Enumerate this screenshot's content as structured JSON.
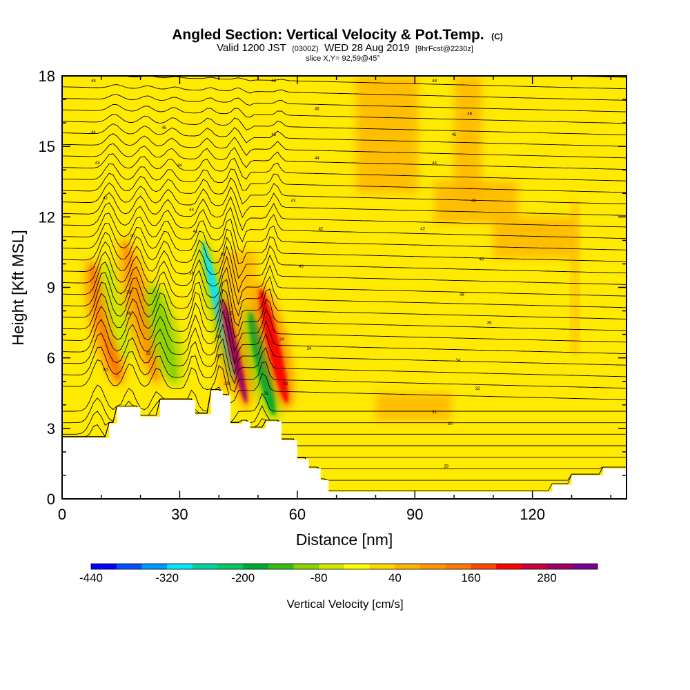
{
  "title": {
    "main": "Angled Section: Vertical Velocity & Pot.Temp.",
    "unit": "(C)",
    "valid_pre": "Valid 1200 JST",
    "valid_z": "(0300Z)",
    "valid_post": "WED 28 Aug 2019",
    "forecast": "[9hrFcst@2230z]",
    "slice": "slice X,Y= 92,59@45°"
  },
  "chart_data": {
    "type": "heatmap",
    "xlabel": "Distance [nm]",
    "ylabel": "Height [Kft MSL]",
    "xlim": [
      0,
      144
    ],
    "ylim": [
      0,
      18
    ],
    "x_ticks": [
      0,
      30,
      60,
      90,
      120
    ],
    "x_tick_labels": [
      "0",
      "30",
      "60",
      "90",
      "120"
    ],
    "y_ticks": [
      0,
      3,
      6,
      9,
      12,
      15,
      18
    ],
    "y_tick_labels": [
      "0",
      "3",
      "6",
      "9",
      "12",
      "15",
      "18"
    ],
    "colorbar": {
      "label": "Vertical Velocity [cm/s]",
      "min": -440,
      "max": 360,
      "step": 40,
      "tick_values": [
        -440,
        -320,
        -200,
        -80,
        40,
        160,
        280
      ],
      "tick_labels": [
        "-440",
        "-320",
        "-200",
        "-80",
        "40",
        "160",
        "280"
      ],
      "colors": [
        "#0000ff",
        "#0050ff",
        "#0096ff",
        "#00e6ff",
        "#00d2a0",
        "#00c864",
        "#00aa32",
        "#32be14",
        "#8cd200",
        "#d2e600",
        "#ffff00",
        "#ffd700",
        "#ffb400",
        "#ff9600",
        "#ff7800",
        "#ff4600",
        "#ff0000",
        "#c8003c",
        "#a00064",
        "#780096"
      ]
    },
    "terrain_height_kft": [
      [
        0,
        2.6
      ],
      [
        5,
        2.6
      ],
      [
        10,
        2.6
      ],
      [
        12,
        3.2
      ],
      [
        14,
        3.9
      ],
      [
        18,
        3.9
      ],
      [
        20,
        3.5
      ],
      [
        22,
        3.5
      ],
      [
        25,
        4.2
      ],
      [
        30,
        4.2
      ],
      [
        34,
        3.6
      ],
      [
        38,
        4.6
      ],
      [
        41,
        4.4
      ],
      [
        43,
        3.2
      ],
      [
        46,
        3.3
      ],
      [
        48,
        3.0
      ],
      [
        52,
        3.3
      ],
      [
        56,
        2.5
      ],
      [
        60,
        1.7
      ],
      [
        63,
        1.3
      ],
      [
        66,
        0.8
      ],
      [
        68,
        0.3
      ],
      [
        75,
        0.3
      ],
      [
        85,
        0.3
      ],
      [
        95,
        0.3
      ],
      [
        105,
        0.3
      ],
      [
        115,
        0.3
      ],
      [
        125,
        0.6
      ],
      [
        130,
        1.0
      ],
      [
        138,
        1.3
      ],
      [
        144,
        1.3
      ]
    ],
    "vertical_velocity_features_cm_s": [
      {
        "x": 11,
        "y_range": [
          5,
          10
        ],
        "value": 120
      },
      {
        "x": 14,
        "y_range": [
          6,
          10
        ],
        "value": -80
      },
      {
        "x": 20,
        "y_range": [
          5,
          11
        ],
        "value": 80
      },
      {
        "x": 26,
        "y_range": [
          5,
          9
        ],
        "value": -120
      },
      {
        "x": 40,
        "y_range": [
          5,
          11
        ],
        "value": -320
      },
      {
        "x": 44,
        "y_range": [
          4,
          8.5
        ],
        "value": 280
      },
      {
        "x": 51,
        "y_range": [
          3.5,
          8
        ],
        "value": -200
      },
      {
        "x": 54,
        "y_range": [
          4,
          9
        ],
        "value": 200
      }
    ],
    "contour_labels": [
      {
        "x": 8,
        "y": 17.8,
        "text": "48"
      },
      {
        "x": 54,
        "y": 17.8,
        "text": "48"
      },
      {
        "x": 95,
        "y": 17.8,
        "text": "48"
      },
      {
        "x": 65,
        "y": 16.6,
        "text": "46"
      },
      {
        "x": 104,
        "y": 16.4,
        "text": "46"
      },
      {
        "x": 26,
        "y": 15.8,
        "text": "45"
      },
      {
        "x": 54,
        "y": 15.5,
        "text": "45"
      },
      {
        "x": 100,
        "y": 15.5,
        "text": "45"
      },
      {
        "x": 8,
        "y": 15.6,
        "text": "44"
      },
      {
        "x": 9,
        "y": 14.3,
        "text": "43"
      },
      {
        "x": 30,
        "y": 14.2,
        "text": "44"
      },
      {
        "x": 65,
        "y": 14.5,
        "text": "44"
      },
      {
        "x": 95,
        "y": 14.3,
        "text": "44"
      },
      {
        "x": 11,
        "y": 12.8,
        "text": "42"
      },
      {
        "x": 33,
        "y": 12.3,
        "text": "43"
      },
      {
        "x": 59,
        "y": 12.7,
        "text": "43"
      },
      {
        "x": 105,
        "y": 12.7,
        "text": "43"
      },
      {
        "x": 66,
        "y": 11.5,
        "text": "42"
      },
      {
        "x": 92,
        "y": 11.5,
        "text": "42"
      },
      {
        "x": 18,
        "y": 11.2,
        "text": "40"
      },
      {
        "x": 34,
        "y": 11.4,
        "text": "41"
      },
      {
        "x": 41,
        "y": 10.4,
        "text": "40"
      },
      {
        "x": 61,
        "y": 9.9,
        "text": "40"
      },
      {
        "x": 107,
        "y": 10.2,
        "text": "40"
      },
      {
        "x": 33,
        "y": 9.6,
        "text": "38"
      },
      {
        "x": 17,
        "y": 8.8,
        "text": "38"
      },
      {
        "x": 102,
        "y": 8.7,
        "text": "38"
      },
      {
        "x": 17,
        "y": 7.9,
        "text": "36"
      },
      {
        "x": 43,
        "y": 7.9,
        "text": "35"
      },
      {
        "x": 109,
        "y": 7.5,
        "text": "36"
      },
      {
        "x": 40,
        "y": 6.9,
        "text": "33"
      },
      {
        "x": 56,
        "y": 6.8,
        "text": "34"
      },
      {
        "x": 22,
        "y": 6.2,
        "text": "32"
      },
      {
        "x": 63,
        "y": 6.4,
        "text": "34"
      },
      {
        "x": 40,
        "y": 6.1,
        "text": "32"
      },
      {
        "x": 11,
        "y": 5.5,
        "text": "30"
      },
      {
        "x": 101,
        "y": 5.9,
        "text": "34"
      },
      {
        "x": 42,
        "y": 4.9,
        "text": "30"
      },
      {
        "x": 57,
        "y": 4.9,
        "text": "33"
      },
      {
        "x": 106,
        "y": 4.7,
        "text": "32"
      },
      {
        "x": 52,
        "y": 4.5,
        "text": "31"
      },
      {
        "x": 95,
        "y": 3.7,
        "text": "31"
      },
      {
        "x": 99,
        "y": 3.2,
        "text": "30"
      },
      {
        "x": 98,
        "y": 1.4,
        "text": "29"
      }
    ]
  }
}
